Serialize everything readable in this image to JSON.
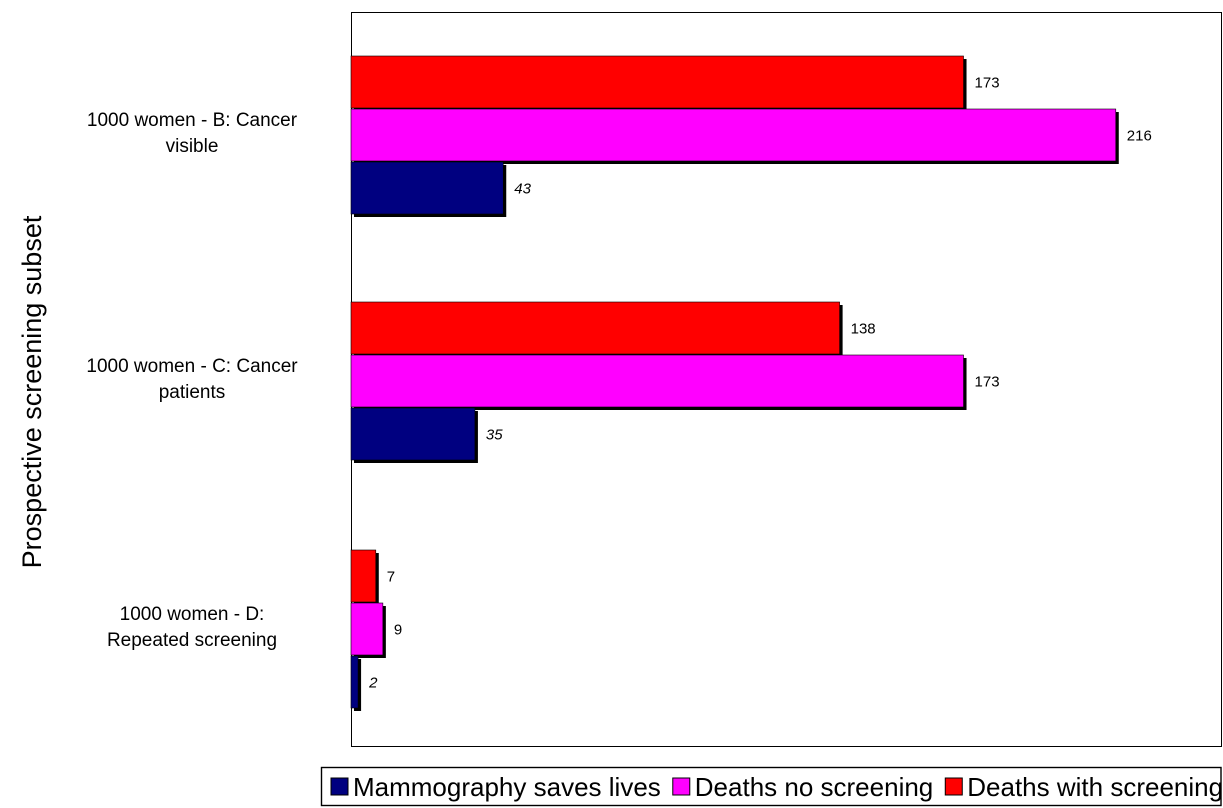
{
  "chart_data": {
    "type": "bar",
    "orientation": "horizontal",
    "title": "",
    "xlabel": "",
    "ylabel": "Prospective screening subset",
    "categories": [
      [
        "1000 women - B: Cancer",
        "visible"
      ],
      [
        "1000 women - C: Cancer",
        "patients"
      ],
      [
        "1000 women - D:",
        "Repeated screening"
      ]
    ],
    "series": [
      {
        "name": "Deaths with screening",
        "color": "#ff0000",
        "values": [
          173,
          138,
          7
        ],
        "labels": [
          "173",
          "138",
          "7"
        ],
        "label_style": "normal"
      },
      {
        "name": "Deaths no screening",
        "color": "#ff00ff",
        "values": [
          216,
          173,
          9
        ],
        "labels": [
          "216",
          "173",
          "9"
        ],
        "label_style": "normal"
      },
      {
        "name": "Mammography saves lives",
        "color": "#000080",
        "values": [
          43,
          35,
          2
        ],
        "labels": [
          "43",
          "35",
          "2"
        ],
        "label_style": "italic"
      }
    ],
    "xlim": [
      0,
      246
    ],
    "grid": false,
    "legend": {
      "position": "bottom",
      "order": [
        "Mammography saves lives",
        "Deaths no screening",
        "Deaths with screening"
      ]
    }
  }
}
